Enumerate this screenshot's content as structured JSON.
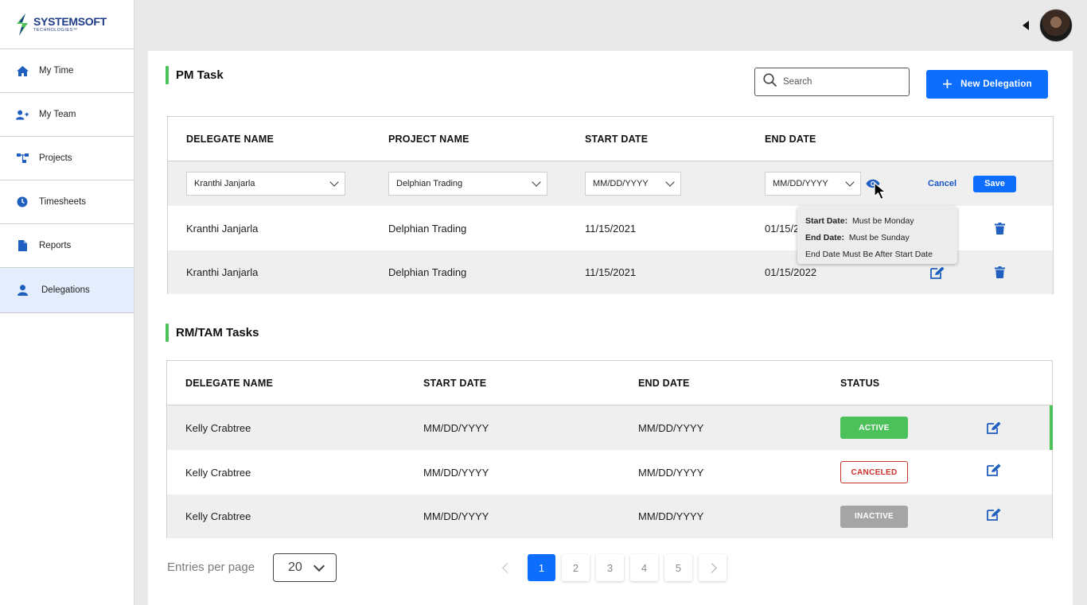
{
  "brand": {
    "name": "SYSTEMSOFT",
    "tagline": "TECHNOLOGIES™",
    "colors": {
      "primary": "#1f3d86",
      "accent": "#4cc15a",
      "blue": "#0d6efd"
    }
  },
  "sidebar": {
    "items": [
      {
        "label": "My Time",
        "icon": "home-icon"
      },
      {
        "label": "My Team",
        "icon": "add-user-icon"
      },
      {
        "label": "Projects",
        "icon": "hierarchy-icon"
      },
      {
        "label": "Timesheets",
        "icon": "clock-icon"
      },
      {
        "label": "Reports",
        "icon": "document-icon"
      },
      {
        "label": "Delegations",
        "icon": "user-icon",
        "active": true
      }
    ]
  },
  "pm": {
    "title": "PM Task",
    "search_placeholder": "Search",
    "new_delegation_label": "New Delegation",
    "headers": [
      "DELEGATE NAME",
      "PROJECT NAME",
      "START DATE",
      "END DATE"
    ],
    "edit_row": {
      "delegate": "Kranthi Janjarla",
      "project": "Delphian Trading",
      "start_placeholder": "MM/DD/YYYY",
      "end_placeholder": "MM/DD/YYYY",
      "cancel_label": "Cancel",
      "save_label": "Save"
    },
    "tooltip": {
      "line1_key": "Start Date:",
      "line1_val": "Must be Monday",
      "line2_key": "End Date:",
      "line2_val": "Must be Sunday",
      "line3": "End Date Must Be After Start Date"
    },
    "rows": [
      {
        "delegate": "Kranthi Janjarla",
        "project": "Delphian Trading",
        "start": "11/15/2021",
        "end": "01/15/2"
      },
      {
        "delegate": "Kranthi Janjarla",
        "project": "Delphian Trading",
        "start": "11/15/2021",
        "end": "01/15/2022"
      }
    ]
  },
  "rm": {
    "title": "RM/TAM Tasks",
    "headers": [
      "DELEGATE NAME",
      "START DATE",
      "END DATE",
      "STATUS"
    ],
    "rows": [
      {
        "delegate": "Kelly Crabtree",
        "start": "MM/DD/YYYY",
        "end": "MM/DD/YYYY",
        "status": "ACTIVE"
      },
      {
        "delegate": "Kelly Crabtree",
        "start": "MM/DD/YYYY",
        "end": "MM/DD/YYYY",
        "status": "CANCELED"
      },
      {
        "delegate": "Kelly Crabtree",
        "start": "MM/DD/YYYY",
        "end": "MM/DD/YYYY",
        "status": "INACTIVE"
      }
    ]
  },
  "pagination": {
    "entries_label": "Entries per page",
    "entries_value": "20",
    "pages": [
      "1",
      "2",
      "3",
      "4",
      "5"
    ],
    "current_page": "1"
  }
}
